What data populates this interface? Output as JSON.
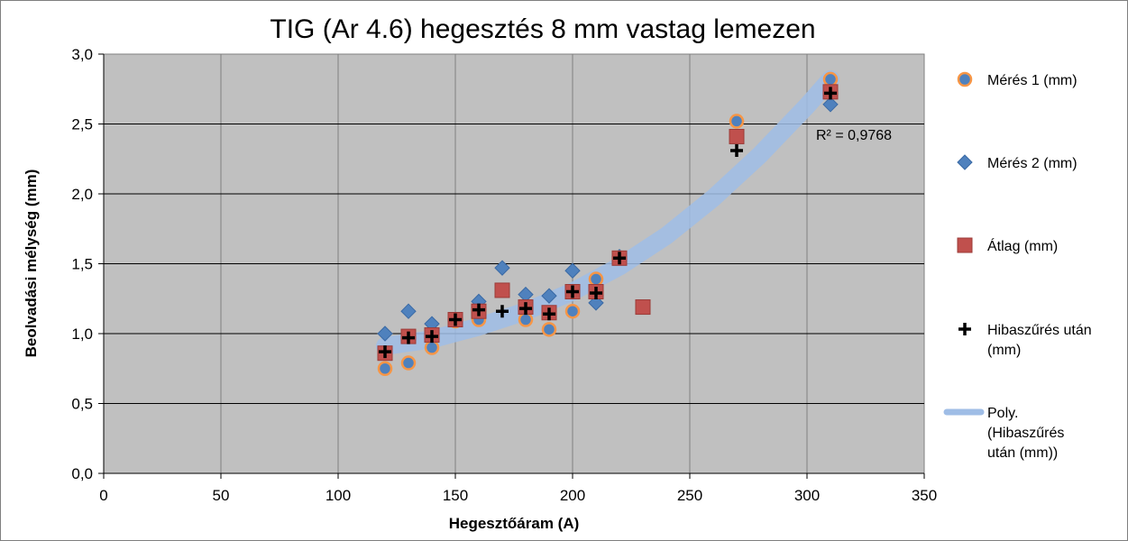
{
  "chart_data": {
    "type": "scatter",
    "title": "TIG (Ar 4.6) hegesztés  8 mm vastag  lemezen",
    "xlabel": "Hegesztőáram (A)",
    "ylabel": "Beolvadási mélység (mm)",
    "xlim": [
      0,
      350
    ],
    "ylim": [
      0,
      3
    ],
    "x_ticks": [
      0,
      50,
      100,
      150,
      200,
      250,
      300,
      350
    ],
    "y_ticks": [
      "0,0",
      "0,5",
      "1,0",
      "1,5",
      "2,0",
      "2,5",
      "3,0"
    ],
    "grid": true,
    "background": "#c0c0c0",
    "legend_position": "right",
    "annotation": "R² = 0,9768",
    "series": [
      {
        "name": "Mérés 1 (mm)",
        "marker": "circle",
        "color": "#4f81bd",
        "edge_color": "#f79646",
        "points": [
          [
            120,
            0.75
          ],
          [
            130,
            0.79
          ],
          [
            140,
            0.9
          ],
          [
            150,
            1.09
          ],
          [
            160,
            1.1
          ],
          [
            180,
            1.1
          ],
          [
            190,
            1.03
          ],
          [
            200,
            1.16
          ],
          [
            210,
            1.39
          ],
          [
            220,
            1.54
          ],
          [
            270,
            2.52
          ],
          [
            310,
            2.82
          ]
        ]
      },
      {
        "name": "Mérés 2 (mm)",
        "marker": "diamond",
        "color": "#4f81bd",
        "points": [
          [
            120,
            1.0
          ],
          [
            130,
            1.16
          ],
          [
            140,
            1.07
          ],
          [
            150,
            1.1
          ],
          [
            160,
            1.23
          ],
          [
            170,
            1.47
          ],
          [
            180,
            1.28
          ],
          [
            190,
            1.27
          ],
          [
            200,
            1.45
          ],
          [
            210,
            1.22
          ],
          [
            220,
            1.55
          ],
          [
            310,
            2.64
          ]
        ]
      },
      {
        "name": "Átlag (mm)",
        "marker": "square",
        "color": "#c0504d",
        "points": [
          [
            120,
            0.86
          ],
          [
            130,
            0.98
          ],
          [
            140,
            0.99
          ],
          [
            150,
            1.1
          ],
          [
            160,
            1.16
          ],
          [
            170,
            1.31
          ],
          [
            180,
            1.19
          ],
          [
            190,
            1.15
          ],
          [
            200,
            1.3
          ],
          [
            210,
            1.3
          ],
          [
            220,
            1.54
          ],
          [
            230,
            1.19
          ],
          [
            270,
            2.41
          ],
          [
            310,
            2.73
          ]
        ]
      },
      {
        "name": "Hibaszűrés után (mm)",
        "marker": "plus",
        "color": "#000000",
        "points": [
          [
            120,
            0.87
          ],
          [
            130,
            0.97
          ],
          [
            140,
            0.98
          ],
          [
            150,
            1.1
          ],
          [
            160,
            1.17
          ],
          [
            170,
            1.16
          ],
          [
            180,
            1.18
          ],
          [
            190,
            1.14
          ],
          [
            200,
            1.3
          ],
          [
            210,
            1.29
          ],
          [
            220,
            1.54
          ],
          [
            270,
            2.31
          ],
          [
            310,
            2.72
          ]
        ]
      },
      {
        "name": "Poly. (Hibaszűrés után (mm))",
        "type": "trendline",
        "color": "#9fbde6",
        "points": [
          [
            120,
            0.91
          ],
          [
            140,
            0.96
          ],
          [
            160,
            1.05
          ],
          [
            180,
            1.16
          ],
          [
            200,
            1.3
          ],
          [
            220,
            1.48
          ],
          [
            240,
            1.7
          ],
          [
            260,
            1.97
          ],
          [
            280,
            2.28
          ],
          [
            300,
            2.63
          ],
          [
            310,
            2.82
          ]
        ]
      }
    ]
  }
}
